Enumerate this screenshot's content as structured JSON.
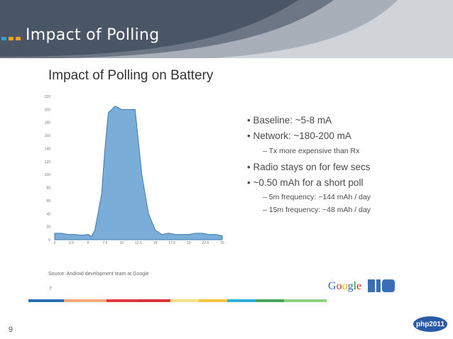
{
  "slide": {
    "title": "Impact of Polling",
    "number": "9"
  },
  "inner_title": "Impact of Polling on Battery",
  "bullets": [
    {
      "level": 1,
      "text": "•  Baseline: ~5-8 mA"
    },
    {
      "level": 1,
      "text": "•  Network: ~180-200 mA"
    },
    {
      "level": 2,
      "text": "–  Tx more expensive than Rx"
    },
    {
      "level": 1,
      "text": "•  Radio stays on for few secs"
    },
    {
      "level": 1,
      "text": "•  ~0.50 mAh for a short poll"
    },
    {
      "level": 2,
      "text": "–  5m frequency: ~144 mAh / day"
    },
    {
      "level": 2,
      "text": "–  15m frequency: ~48 mAh / day"
    }
  ],
  "source": "Source: Android development team at Google",
  "small_page_number": "7",
  "google_logo": "Google",
  "php_badge": "php2011",
  "colors": {
    "header": "#4a5666",
    "area_fill": "#7aaed8",
    "area_stroke": "#3f79b3",
    "color_bar": [
      "#2f6fb0",
      "#f5a97a",
      "#e23a3a",
      "#d93535",
      "#f7e08a",
      "#f6c440",
      "#2fb0d9",
      "#49a35a",
      "#8cd37f"
    ]
  },
  "icons": {
    "header_bullets": "square-bullets-icon",
    "io_logo": "io-logo-icon"
  },
  "chart_data": {
    "type": "area",
    "x": [
      0,
      1,
      2,
      3,
      4,
      5,
      5.5,
      6,
      7,
      7.5,
      8,
      9,
      10,
      11,
      12,
      13,
      14,
      15,
      16,
      17,
      18,
      19,
      20,
      21,
      22,
      23,
      24,
      25
    ],
    "values": [
      10,
      10,
      8,
      8,
      7,
      8,
      5,
      15,
      70,
      140,
      195,
      205,
      200,
      200,
      200,
      100,
      40,
      15,
      8,
      10,
      8,
      8,
      8,
      10,
      10,
      8,
      8,
      6
    ],
    "xticks": [
      "0",
      "2.5",
      "5",
      "7.5",
      "10",
      "12.5",
      "15",
      "17.5",
      "20",
      "22.5",
      "25"
    ],
    "yticks": [
      "0",
      "20",
      "40",
      "60",
      "80",
      "100",
      "120",
      "140",
      "160",
      "180",
      "200",
      "220"
    ],
    "xlim": [
      0,
      25
    ],
    "ylim": [
      0,
      220
    ],
    "grid": false
  }
}
